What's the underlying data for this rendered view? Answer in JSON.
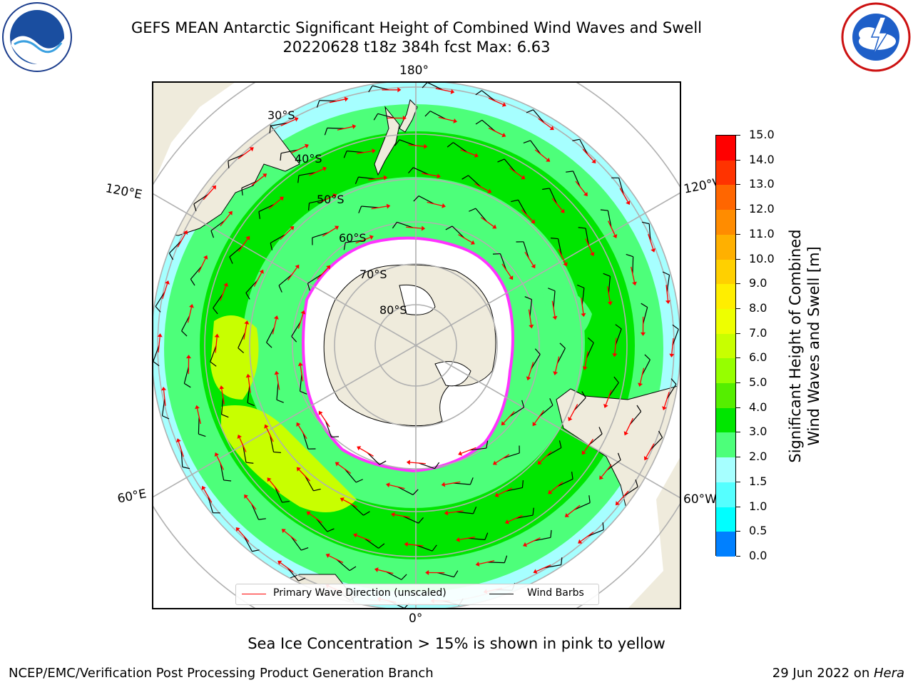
{
  "title": {
    "line1": "GEFS MEAN Antarctic Significant Height of Combined Wind Waves and Swell",
    "line2": "20220628 t18z 384h fcst   Max: 6.63"
  },
  "logos": {
    "left": "noaa-logo",
    "right": "nws-logo"
  },
  "map": {
    "projection": "south-polar-stereographic",
    "longitude_labels": {
      "top": "180°",
      "bottom": "0°",
      "upper_left": "120°E",
      "lower_left": "60°E",
      "upper_right": "120°W",
      "lower_right": "60°W"
    },
    "latitude_labels": [
      "30°S",
      "40°S",
      "50°S",
      "60°S",
      "70°S",
      "80°S"
    ],
    "colors": {
      "land": "#efebdc",
      "ocean_low": "#a6ffff",
      "ocean_mid": "#4dff7a",
      "ocean_high": "#00e600",
      "peak": "#c8ff00",
      "ice": "#ffffff",
      "ice_edge": "#ff33ff",
      "wave_arrow": "#ff0000",
      "wind_barb": "#000000"
    }
  },
  "legend": {
    "wave_label": "Primary Wave Direction (unscaled)",
    "barb_label": "Wind Barbs"
  },
  "colorbar": {
    "label_line1": "Significant Height of Combined",
    "label_line2": "Wind Waves and Swell [m]",
    "ticks": [
      "15.0",
      "14.0",
      "13.0",
      "12.0",
      "11.0",
      "10.0",
      "9.0",
      "8.0",
      "7.0",
      "6.0",
      "5.0",
      "4.0",
      "3.0",
      "2.0",
      "1.5",
      "1.0",
      "0.5",
      "0.0"
    ],
    "colors": [
      "#ff0000",
      "#ff3300",
      "#ff6600",
      "#ff8c00",
      "#ffb000",
      "#ffd000",
      "#ffee00",
      "#eeff00",
      "#c8ff00",
      "#96ff00",
      "#55ee00",
      "#00e600",
      "#4dff7a",
      "#a6ffff",
      "#55ffff",
      "#00ffff",
      "#0080ff",
      "#0000ff"
    ]
  },
  "footer": {
    "note": "Sea Ice Concentration > 15% is shown in pink to yellow",
    "left": "NCEP/EMC/Verification Post Processing Product Generation Branch",
    "right_prefix": "29 Jun 2022 on ",
    "right_host": "Hera"
  }
}
